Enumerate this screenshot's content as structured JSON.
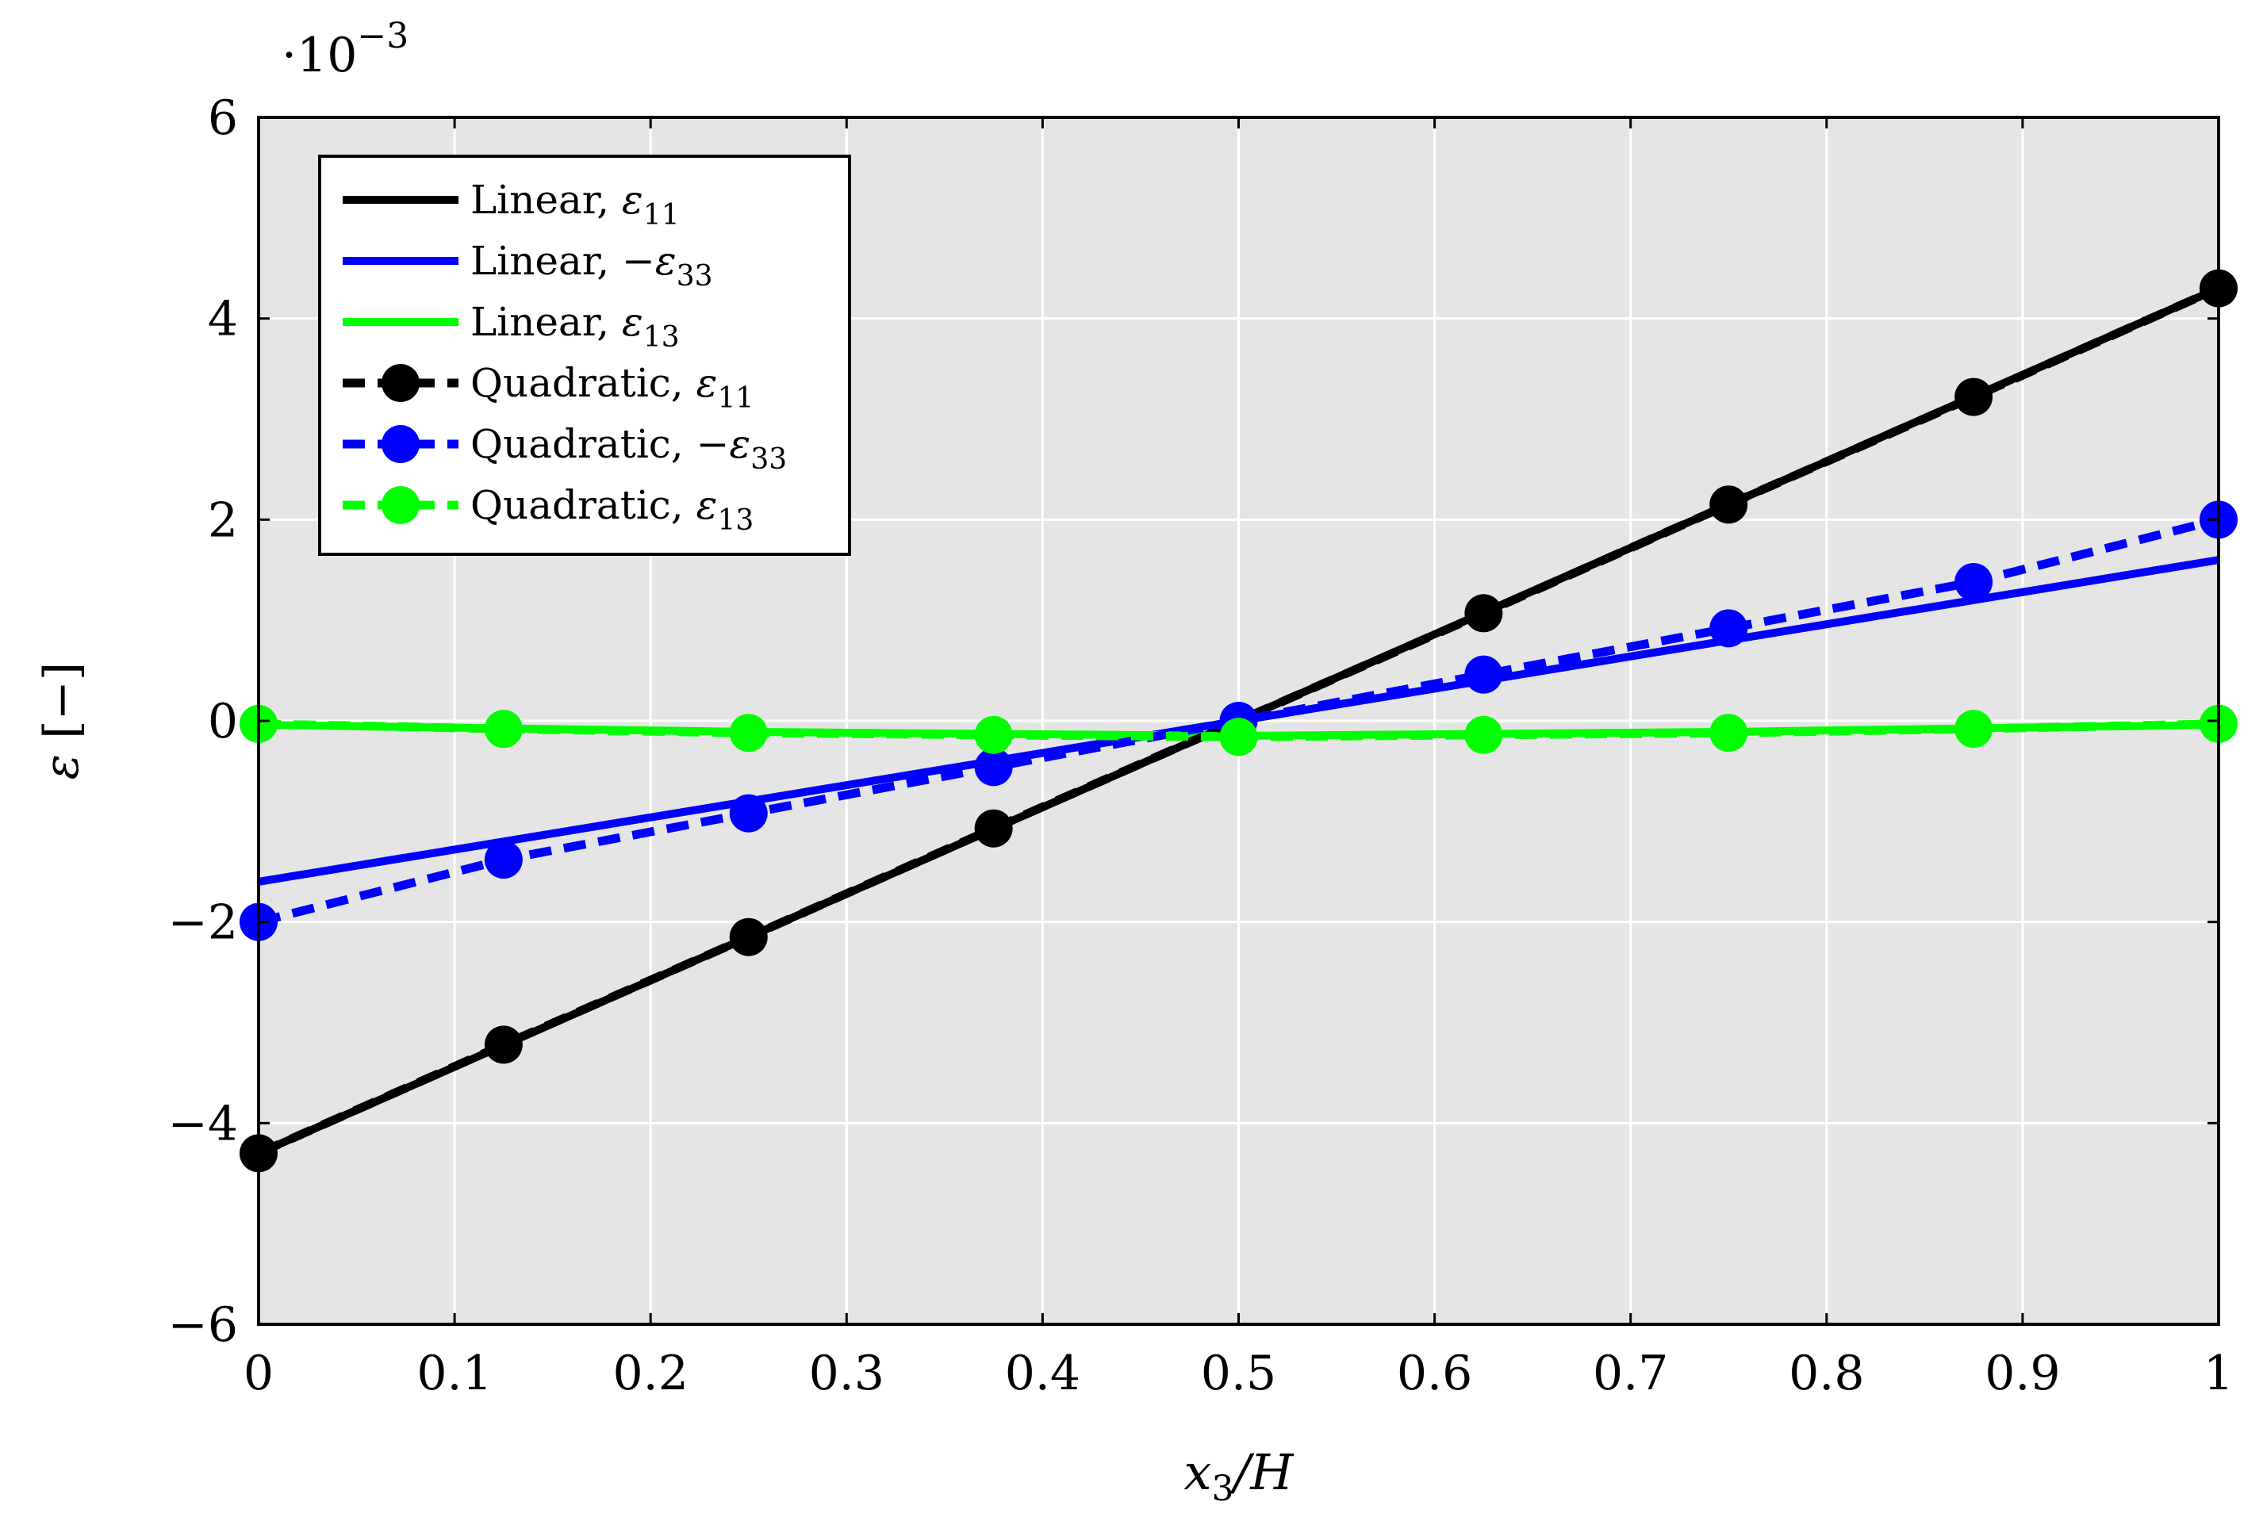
{
  "chart_data": {
    "type": "line",
    "xlabel": {
      "base": "x",
      "sub": "3",
      "rest": "/H"
    },
    "ylabel": {
      "sym": "ε",
      "rest": " [−]"
    },
    "y_multiplier": {
      "prefix": "·10",
      "exp": "−3"
    },
    "xlim": [
      0,
      1
    ],
    "ylim": [
      -6,
      6
    ],
    "x_ticks": [
      0,
      0.1,
      0.2,
      0.3,
      0.4,
      0.5,
      0.6,
      0.7,
      0.8,
      0.9,
      1
    ],
    "x_tick_labels": [
      "0",
      "0.1",
      "0.2",
      "0.3",
      "0.4",
      "0.5",
      "0.6",
      "0.7",
      "0.8",
      "0.9",
      "1"
    ],
    "y_ticks": [
      -6,
      -4,
      -2,
      0,
      2,
      4,
      6
    ],
    "y_tick_labels": [
      "−6",
      "−4",
      "−2",
      "0",
      "2",
      "4",
      "6"
    ],
    "grid": true,
    "background": "#e5e5e5",
    "legend_position": "top-left",
    "series": [
      {
        "name": "Linear,   ε11",
        "label": "Linear,",
        "sign": "",
        "sym": "ε",
        "sub": "11",
        "color": "#000000",
        "dash": false,
        "markers": false,
        "x": [
          0,
          1
        ],
        "y": [
          -4.3,
          4.3
        ]
      },
      {
        "name": "Linear, −ε33",
        "label": "Linear,",
        "sign": "−",
        "sym": "ε",
        "sub": "33",
        "color": "#0000ff",
        "dash": false,
        "markers": false,
        "x": [
          0,
          1
        ],
        "y": [
          -1.6,
          1.6
        ]
      },
      {
        "name": "Linear,   ε13",
        "label": "Linear,",
        "sign": "",
        "sym": "ε",
        "sub": "13",
        "color": "#00ff00",
        "dash": false,
        "markers": false,
        "x": [
          0,
          0.25,
          0.5,
          0.75,
          1
        ],
        "y": [
          -0.04,
          -0.11,
          -0.15,
          -0.11,
          -0.04
        ]
      },
      {
        "name": "Quadratic,   ε11",
        "label": "Quadratic,",
        "sign": "",
        "sym": "ε",
        "sub": "11",
        "color": "#000000",
        "dash": true,
        "markers": true,
        "x": [
          0,
          0.125,
          0.25,
          0.375,
          0.625,
          0.75,
          0.875,
          1
        ],
        "y": [
          -4.3,
          -3.22,
          -2.15,
          -1.07,
          1.07,
          2.15,
          3.22,
          4.3
        ]
      },
      {
        "name": "Quadratic, −ε33",
        "label": "Quadratic,",
        "sign": "−",
        "sym": "ε",
        "sub": "33",
        "color": "#0000ff",
        "dash": true,
        "markers": true,
        "x": [
          0,
          0.125,
          0.25,
          0.375,
          0.5,
          0.625,
          0.75,
          0.875,
          1
        ],
        "y": [
          -2.0,
          -1.38,
          -0.92,
          -0.46,
          0.0,
          0.46,
          0.92,
          1.38,
          2.0
        ]
      },
      {
        "name": "Quadratic,   ε13",
        "label": "Quadratic,",
        "sign": "",
        "sym": "ε",
        "sub": "13",
        "color": "#00ff00",
        "dash": true,
        "markers": true,
        "x": [
          0,
          0.125,
          0.25,
          0.375,
          0.5,
          0.625,
          0.75,
          0.875,
          1
        ],
        "y": [
          -0.03,
          -0.08,
          -0.12,
          -0.14,
          -0.16,
          -0.14,
          -0.12,
          -0.08,
          -0.03
        ]
      }
    ]
  }
}
